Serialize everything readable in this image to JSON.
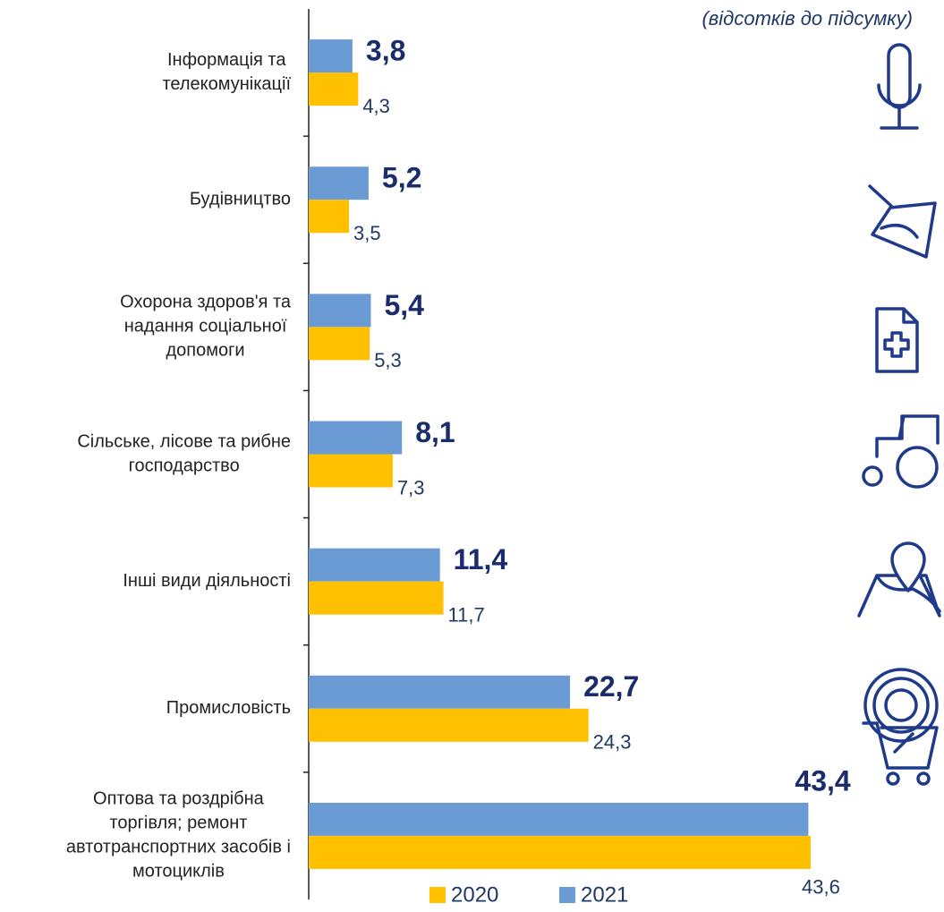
{
  "chart_data": {
    "type": "hbar",
    "subtitle": "(відсотків до підсумку)",
    "categories": [
      [
        "Інформація та",
        "телекомунікації"
      ],
      [
        "Будівництво"
      ],
      [
        "Охорона здоров'я та",
        "надання соціальної",
        "допомоги"
      ],
      [
        "Сільське, лісове та рибне",
        "господарство"
      ],
      [
        "Інші види діяльності"
      ],
      [
        "Промисловість"
      ],
      [
        "Оптова та роздрібна",
        "торгівля; ремонт",
        "автотранспортних засобів і",
        "мотоциклів"
      ]
    ],
    "series": [
      {
        "name": "2020",
        "color": "#ffc000",
        "values": [
          4.3,
          3.5,
          5.3,
          7.3,
          11.7,
          24.3,
          43.6
        ],
        "value_labels": [
          "4,3",
          "3,5",
          "5,3",
          "7,3",
          "11,7",
          "24,3",
          "43,6"
        ]
      },
      {
        "name": "2021",
        "color": "#6a9bd4",
        "values": [
          3.8,
          5.2,
          5.4,
          8.1,
          11.4,
          22.7,
          43.4
        ],
        "value_labels": [
          "3,8",
          "5,2",
          "5,4",
          "8,1",
          "11,4",
          "22,7",
          "43,4"
        ]
      }
    ],
    "xlim": [
      0,
      45
    ]
  }
}
